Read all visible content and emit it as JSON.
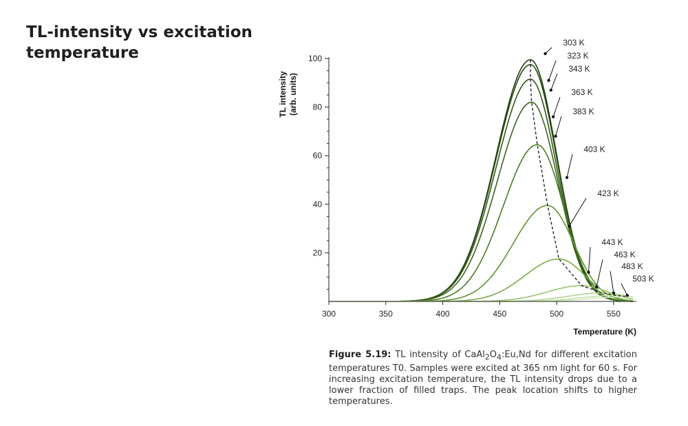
{
  "slide": {
    "title": "TL-intensity vs excitation temperature"
  },
  "caption": {
    "label": "Figure 5.19:",
    "text_before": " TL intensity of CaAl",
    "sub1": "2",
    "text_mid": "O",
    "sub2": "4",
    "text_after": ":Eu,Nd for different excitation temperatures T0. Samples were excited at 365 nm light for 60 s. For increasing excitation temperature, the TL intensity drops due to a lower fraction of filled traps. The peak location shifts to higher temperatures."
  },
  "chart_data": {
    "type": "line",
    "xlabel": "Temperature (K)",
    "ylabel_line1": "TL intensity",
    "ylabel_line2": "(arb. units)",
    "xlim": [
      300,
      570
    ],
    "ylim": [
      0,
      100
    ],
    "xticks": [
      300,
      350,
      400,
      450,
      500,
      550
    ],
    "yticks": [
      20,
      40,
      60,
      80,
      100
    ],
    "grid": false,
    "legend": "none",
    "series": [
      {
        "name": "303 K",
        "peak_x": 477,
        "peak_y": 99.5,
        "color": "#1e3d0d",
        "label_at": [
          490,
          102
        ]
      },
      {
        "name": "323 K",
        "peak_x": 477,
        "peak_y": 97.5,
        "color": "#27480f",
        "label_at": [
          493,
          91
        ]
      },
      {
        "name": "343 K",
        "peak_x": 477,
        "peak_y": 91.5,
        "color": "#305515",
        "label_at": [
          495,
          87
        ]
      },
      {
        "name": "363 K",
        "peak_x": 478,
        "peak_y": 82,
        "color": "#3b641b",
        "label_at": [
          497,
          76
        ]
      },
      {
        "name": "383 K",
        "peak_x": 483,
        "peak_y": 64.5,
        "color": "#4a7a24",
        "label_at": [
          499,
          68
        ]
      },
      {
        "name": "403 K",
        "peak_x": 492,
        "peak_y": 39.5,
        "color": "#5f9231",
        "label_at": [
          509,
          51
        ]
      },
      {
        "name": "423 K",
        "peak_x": 502,
        "peak_y": 17.5,
        "color": "#79ab48",
        "label_at": [
          511,
          31
        ]
      },
      {
        "name": "443 K",
        "peak_x": 522,
        "peak_y": 6.5,
        "color": "#97c26c",
        "label_at": [
          528,
          12
        ]
      },
      {
        "name": "463 K",
        "peak_x": 540,
        "peak_y": 3.5,
        "color": "#b1d58e",
        "label_at": [
          535,
          6
        ]
      },
      {
        "name": "483 K",
        "peak_x": 552,
        "peak_y": 2.5,
        "color": "#c5e2a9",
        "label_at": [
          550,
          3.5
        ]
      },
      {
        "name": "503 K",
        "peak_x": 562,
        "peak_y": 2,
        "color": "#d6ebc0",
        "label_at": [
          562,
          2.5
        ]
      }
    ],
    "peak_trend": {
      "style": "dashed",
      "color": "#111111",
      "x": [
        477,
        477,
        477,
        478,
        483,
        492,
        502,
        522,
        540,
        552,
        562
      ],
      "y": [
        99.5,
        97.5,
        91.5,
        82,
        64.5,
        39.5,
        17.5,
        6.5,
        3.5,
        2.5,
        2
      ]
    }
  }
}
